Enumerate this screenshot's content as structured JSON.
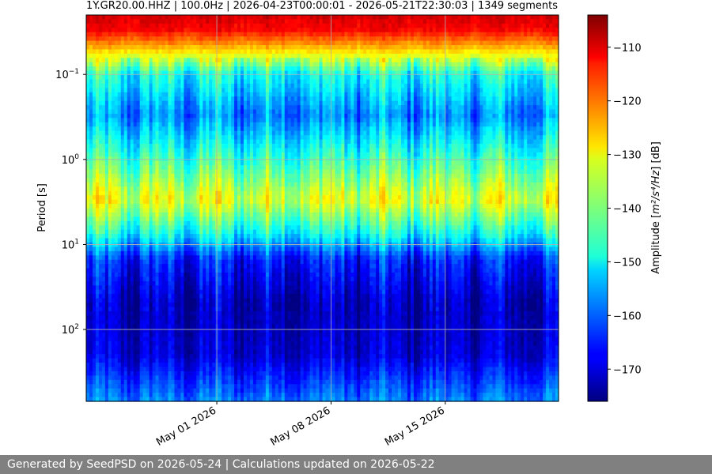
{
  "chart_data": {
    "type": "heatmap",
    "title": "1Y.GR20.00.HHZ | 100.0Hz | 2026-04-23T00:00:01 - 2026-05-21T22:30:03 | 1349 segments",
    "ylabel": "Period [s]",
    "y_scale": "log",
    "y_inverted": true,
    "ylim": [
      0.02,
      700
    ],
    "y_ticks": [
      0.1,
      1,
      10,
      100
    ],
    "y_tick_labels": [
      {
        "base": "10",
        "exp": "−1"
      },
      {
        "base": "10",
        "exp": "0"
      },
      {
        "base": "10",
        "exp": "1"
      },
      {
        "base": "10",
        "exp": "2"
      }
    ],
    "xlim": [
      "2026-04-23T00:00:01",
      "2026-05-21T22:30:03"
    ],
    "x_ticks": [
      "2026-05-01",
      "2026-05-08",
      "2026-05-15"
    ],
    "x_tick_labels": [
      "May 01 2026",
      "May 08 2026",
      "May 15 2026"
    ],
    "grid": true,
    "colormap": "jet",
    "colorbar": {
      "label_prefix": "Amplitude [",
      "label_math": "m²/s⁴/Hz",
      "label_suffix": "] [dB]",
      "range": [
        -176,
        -104
      ],
      "ticks": [
        -110,
        -120,
        -130,
        -140,
        -150,
        -160,
        -170
      ],
      "tick_labels": [
        "−110",
        "−120",
        "−130",
        "−140",
        "−150",
        "−160",
        "−170"
      ]
    },
    "period_profile_db": [
      {
        "period": 0.02,
        "db": -110
      },
      {
        "period": 0.03,
        "db": -113
      },
      {
        "period": 0.05,
        "db": -127
      },
      {
        "period": 0.1,
        "db": -148
      },
      {
        "period": 0.3,
        "db": -158
      },
      {
        "period": 1,
        "db": -145
      },
      {
        "period": 3,
        "db": -133
      },
      {
        "period": 8,
        "db": -150
      },
      {
        "period": 15,
        "db": -165
      },
      {
        "period": 50,
        "db": -172
      },
      {
        "period": 200,
        "db": -170
      },
      {
        "period": 700,
        "db": -158
      }
    ]
  },
  "footer": {
    "text": "Generated by SeedPSD on 2026-05-24 | Calculations updated on 2026-05-22"
  }
}
